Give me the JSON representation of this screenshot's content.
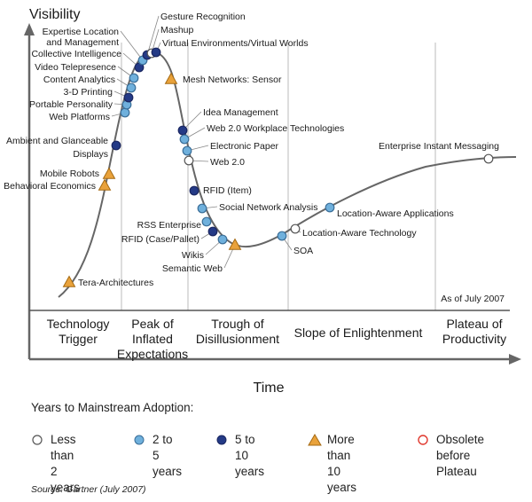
{
  "title": "Visibility",
  "x_axis_title": "Time",
  "as_of": "As of July 2007",
  "phases": [
    [
      "Technology",
      "Trigger"
    ],
    [
      "Peak of",
      "Inflated",
      "Expectations"
    ],
    [
      "Trough of",
      "Disillusionment"
    ],
    [
      "Slope of Enlightenment"
    ],
    [
      "Plateau of",
      "Productivity"
    ]
  ],
  "legend": {
    "title": "Years to Mainstream Adoption:",
    "less_than_2": "Less than\n2 years",
    "two_to_five": "2 to 5\nyears",
    "five_to_ten": "5 to 10\nyears",
    "more_than_10": "More than\n10 years",
    "obsolete": "Obsolete\nbefore Plateau"
  },
  "source": "Source: Gartner (July 2007)",
  "colors": {
    "less_than_2": "#ffffff",
    "two_to_five": "#6fb0dc",
    "five_to_ten": "#243a86",
    "more_than_10": "#e9a23b",
    "obsolete": "#e03a2f",
    "curve": "#666666"
  },
  "technologies": [
    {
      "label": "Tera-Architectures",
      "category": "more_than_10"
    },
    {
      "label": "Behavioral Economics",
      "category": "more_than_10"
    },
    {
      "label": "Mobile Robots",
      "category": "more_than_10"
    },
    {
      "label": "Ambient and Glanceable",
      "label2": "Displays",
      "category": "five_to_ten"
    },
    {
      "label": "Web Platforms",
      "category": "two_to_five"
    },
    {
      "label": "Portable Personality",
      "category": "two_to_five"
    },
    {
      "label": "3-D Printing",
      "category": "five_to_ten"
    },
    {
      "label": "Content Analytics",
      "category": "two_to_five"
    },
    {
      "label": "Video Telepresence",
      "category": "two_to_five"
    },
    {
      "label": "Collective Intelligence",
      "category": "five_to_ten"
    },
    {
      "label": "Expertise Location",
      "label2": "and Management",
      "category": "two_to_five"
    },
    {
      "label": "Gesture Recognition",
      "category": "five_to_ten"
    },
    {
      "label": "Mashup",
      "category": "less_than_2"
    },
    {
      "label": "Virtual Environments/Virtual Worlds",
      "category": "five_to_ten"
    },
    {
      "label": "Mesh Networks: Sensor",
      "category": "more_than_10"
    },
    {
      "label": "Idea Management",
      "category": "five_to_ten"
    },
    {
      "label": "Web 2.0 Workplace Technologies",
      "category": "two_to_five"
    },
    {
      "label": "Electronic Paper",
      "category": "two_to_five"
    },
    {
      "label": "Web 2.0",
      "category": "less_than_2"
    },
    {
      "label": "RFID (Item)",
      "category": "five_to_ten"
    },
    {
      "label": "Social Network Analysis",
      "category": "two_to_five"
    },
    {
      "label": "RSS Enterprise",
      "category": "two_to_five"
    },
    {
      "label": "RFID (Case/Pallet)",
      "category": "five_to_ten"
    },
    {
      "label": "Wikis",
      "category": "two_to_five"
    },
    {
      "label": "Semantic Web",
      "category": "more_than_10"
    },
    {
      "label": "SOA",
      "category": "two_to_five"
    },
    {
      "label": "Location-Aware Technology",
      "category": "less_than_2"
    },
    {
      "label": "Location-Aware Applications",
      "category": "two_to_five"
    },
    {
      "label": "Enterprise Instant Messaging",
      "category": "less_than_2"
    }
  ]
}
